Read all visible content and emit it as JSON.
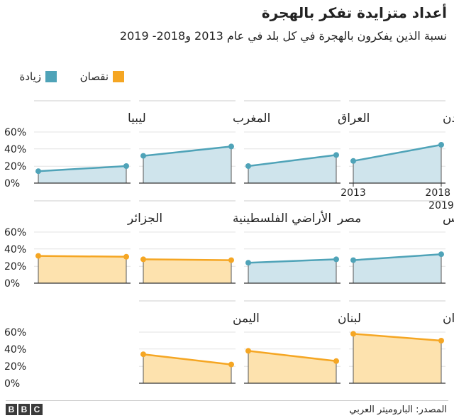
{
  "title": "أعداد متزايدة تفكر بالهجرة",
  "subtitle": "نسبة الذين يفكرون بالهجرة في كل بلد في عام 2013 و2018- 2019",
  "legend": [
    {
      "label": "زيادة",
      "color": "#4fa3b8"
    },
    {
      "label": "نقصان",
      "color": "#f5a623"
    }
  ],
  "source": "المصدر: الباروميتر العربي",
  "brand": {
    "b1": "B",
    "b2": "B",
    "b3": "C"
  },
  "chart_data": {
    "type": "area",
    "x": [
      "2013",
      "2018 - 2019"
    ],
    "ylim": [
      0,
      60
    ],
    "yticks": [
      "60%",
      "40%",
      "20%",
      "0%"
    ],
    "xtick_top": [
      "2013",
      "2018 -"
    ],
    "xtick_bottom": "2019",
    "colors": {
      "increase": "#4fa3b8",
      "increase_fill": "#cfe4ec",
      "decrease": "#f5a623",
      "decrease_fill": "#fde2ae"
    },
    "series": [
      {
        "name": "الأردن",
        "values": [
          26,
          45
        ],
        "trend": "increase"
      },
      {
        "name": "العراق",
        "values": [
          20,
          33
        ],
        "trend": "increase"
      },
      {
        "name": "المغرب",
        "values": [
          32,
          43
        ],
        "trend": "increase"
      },
      {
        "name": "ليبيا",
        "values": [
          14,
          20
        ],
        "trend": "increase"
      },
      {
        "name": "تونس",
        "values": [
          27,
          34
        ],
        "trend": "increase"
      },
      {
        "name": "مصر",
        "values": [
          24,
          28
        ],
        "trend": "increase"
      },
      {
        "name": "الأراضي الفلسطينية",
        "values": [
          28,
          27
        ],
        "trend": "decrease"
      },
      {
        "name": "الجزائر",
        "values": [
          32,
          31
        ],
        "trend": "decrease"
      },
      {
        "name": "السودان",
        "values": [
          58,
          50
        ],
        "trend": "decrease"
      },
      {
        "name": "لبنان",
        "values": [
          38,
          26
        ],
        "trend": "decrease"
      },
      {
        "name": "اليمن",
        "values": [
          34,
          22
        ],
        "trend": "decrease"
      }
    ]
  }
}
